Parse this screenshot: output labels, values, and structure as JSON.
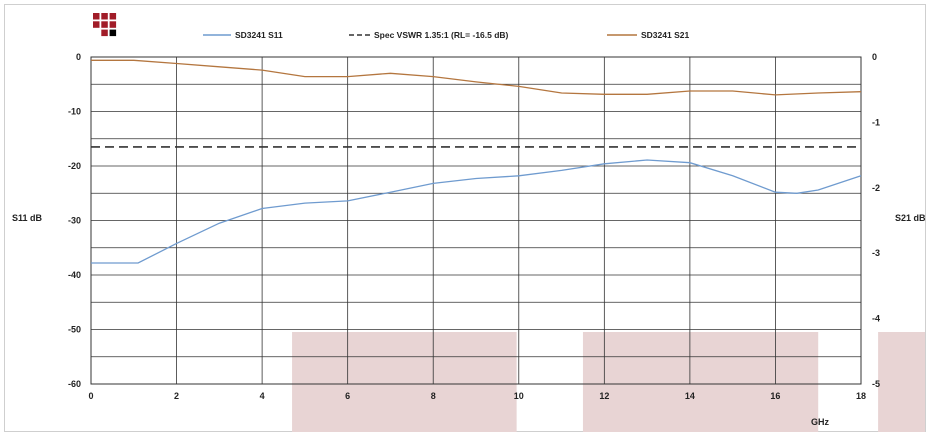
{
  "chart_data": {
    "type": "line",
    "xlabel": "GHz",
    "ylabel_left": "S11 dB",
    "ylabel_right": "S21 dB",
    "xlim": [
      0,
      18
    ],
    "ylim_left": [
      -60,
      0
    ],
    "ylim_right": [
      -5,
      0
    ],
    "grid": true,
    "legend_position": "top",
    "x_ticks": [
      "0",
      "2",
      "4",
      "6",
      "8",
      "10",
      "12",
      "14",
      "16",
      "18"
    ],
    "y_left_ticks": [
      "0",
      "-10",
      "-20",
      "-30",
      "-40",
      "-50",
      "-60"
    ],
    "y_right_ticks": [
      "0",
      "-1",
      "-2",
      "-3",
      "-4",
      "-5"
    ],
    "series": [
      {
        "name": "SD3241 S11",
        "axis": "left",
        "color": "#6f9bcf",
        "style": "solid",
        "points": [
          [
            0,
            -37.8
          ],
          [
            1.1,
            -37.8
          ],
          [
            2,
            -34.2
          ],
          [
            3,
            -30.5
          ],
          [
            4,
            -27.8
          ],
          [
            5,
            -26.8
          ],
          [
            6,
            -26.4
          ],
          [
            7,
            -24.8
          ],
          [
            8,
            -23.2
          ],
          [
            9,
            -22.3
          ],
          [
            10,
            -21.8
          ],
          [
            11,
            -20.8
          ],
          [
            12,
            -19.6
          ],
          [
            13,
            -18.9
          ],
          [
            14,
            -19.4
          ],
          [
            15,
            -21.8
          ],
          [
            16,
            -24.8
          ],
          [
            16.5,
            -25.0
          ],
          [
            17,
            -24.4
          ],
          [
            18,
            -21.8
          ]
        ]
      },
      {
        "name": "Spec VSWR 1.35:1 (RL= -16.5 dB)",
        "axis": "left",
        "color": "#333333",
        "style": "dashed",
        "points": [
          [
            0,
            -16.5
          ],
          [
            18,
            -16.5
          ]
        ]
      },
      {
        "name": "SD3241 S21",
        "axis": "right",
        "color": "#b4763f",
        "style": "solid",
        "points": [
          [
            0,
            -0.05
          ],
          [
            1,
            -0.05
          ],
          [
            2,
            -0.1
          ],
          [
            3,
            -0.15
          ],
          [
            4,
            -0.2
          ],
          [
            5,
            -0.3
          ],
          [
            6,
            -0.3
          ],
          [
            7,
            -0.25
          ],
          [
            8,
            -0.3
          ],
          [
            9,
            -0.38
          ],
          [
            10,
            -0.45
          ],
          [
            11,
            -0.55
          ],
          [
            12,
            -0.57
          ],
          [
            13,
            -0.57
          ],
          [
            14,
            -0.52
          ],
          [
            15,
            -0.52
          ],
          [
            16,
            -0.58
          ],
          [
            17,
            -0.55
          ],
          [
            18,
            -0.53
          ]
        ]
      }
    ],
    "shaded_bands_x": [
      [
        4.7,
        9.95
      ],
      [
        11.5,
        17.0
      ],
      [
        18.4,
        20
      ]
    ],
    "band_color": "#e8d4d4"
  },
  "logo": {
    "name": "company-logo",
    "colors": [
      "#a11c28",
      "#000000"
    ]
  }
}
